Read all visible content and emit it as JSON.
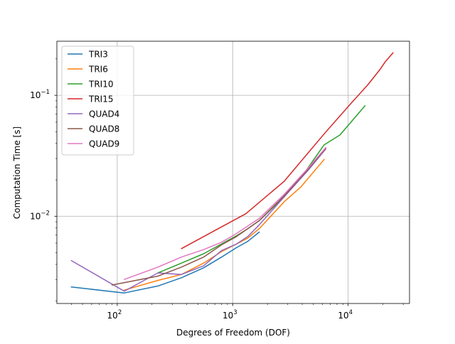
{
  "chart_data": {
    "type": "line",
    "xscale": "log",
    "yscale": "log",
    "xlabel": "Degrees of Freedom (DOF)",
    "ylabel": "Computation Time [s]",
    "xlim": [
      30,
      34000
    ],
    "ylim": [
      0.0019,
      0.28
    ],
    "x_ticks": [
      {
        "value": 100,
        "base": "10",
        "exp": "2"
      },
      {
        "value": 1000,
        "base": "10",
        "exp": "3"
      },
      {
        "value": 10000,
        "base": "10",
        "exp": "4"
      }
    ],
    "y_ticks": [
      {
        "value": 0.01,
        "base": "10",
        "exp": "−2"
      },
      {
        "value": 0.1,
        "base": "10",
        "exp": "−1"
      }
    ],
    "grid": true,
    "legend_position": "top-left",
    "series": [
      {
        "name": "TRI3",
        "color": "#1f77b4",
        "x": [
          40,
          115,
          225,
          360,
          560,
          800,
          1080,
          1350,
          1700
        ],
        "y": [
          0.0026,
          0.00232,
          0.00265,
          0.0031,
          0.00375,
          0.0046,
          0.0055,
          0.0062,
          0.0074
        ]
      },
      {
        "name": "TRI6",
        "color": "#ff7f0e",
        "x": [
          115,
          225,
          360,
          560,
          800,
          1080,
          1350,
          1700,
          2800,
          3900,
          6200
        ],
        "y": [
          0.00245,
          0.00295,
          0.0033,
          0.0041,
          0.0051,
          0.0059,
          0.0066,
          0.0079,
          0.0132,
          0.0175,
          0.0295
        ]
      },
      {
        "name": "TRI10",
        "color": "#2ca02c",
        "x": [
          225,
          360,
          560,
          800,
          1080,
          1350,
          1700,
          2800,
          4000,
          6200,
          8500,
          14000
        ],
        "y": [
          0.0034,
          0.0041,
          0.0049,
          0.0059,
          0.0069,
          0.0079,
          0.0092,
          0.0145,
          0.0215,
          0.039,
          0.047,
          0.082
        ]
      },
      {
        "name": "TRI15",
        "color": "#d62728",
        "x": [
          360,
          1300,
          2800,
          6200,
          10500,
          14800,
          19000,
          21000,
          24500
        ],
        "y": [
          0.0054,
          0.0105,
          0.0195,
          0.048,
          0.085,
          0.122,
          0.165,
          0.19,
          0.225
        ]
      },
      {
        "name": "QUAD4",
        "color": "#9467bd",
        "x": [
          40,
          115,
          225,
          360,
          560,
          800,
          1080,
          1350,
          1700,
          2800,
          4500,
          6400
        ],
        "y": [
          0.0043,
          0.0024,
          0.0034,
          0.0033,
          0.0039,
          0.0052,
          0.0059,
          0.0068,
          0.0085,
          0.0145,
          0.024,
          0.036
        ]
      },
      {
        "name": "QUAD8",
        "color": "#8c564b",
        "x": [
          90,
          225,
          360,
          560,
          800,
          1080,
          1350,
          1700,
          2800,
          4500,
          6400
        ],
        "y": [
          0.0027,
          0.0032,
          0.0038,
          0.0046,
          0.0058,
          0.0068,
          0.0079,
          0.0092,
          0.0148,
          0.0245,
          0.0365
        ]
      },
      {
        "name": "QUAD9",
        "color": "#e377c2",
        "x": [
          115,
          225,
          360,
          560,
          800,
          1080,
          1350,
          1700,
          2800,
          4500,
          6400
        ],
        "y": [
          0.003,
          0.0038,
          0.0046,
          0.0053,
          0.0061,
          0.0072,
          0.0083,
          0.0096,
          0.0152,
          0.025,
          0.037
        ]
      }
    ]
  }
}
